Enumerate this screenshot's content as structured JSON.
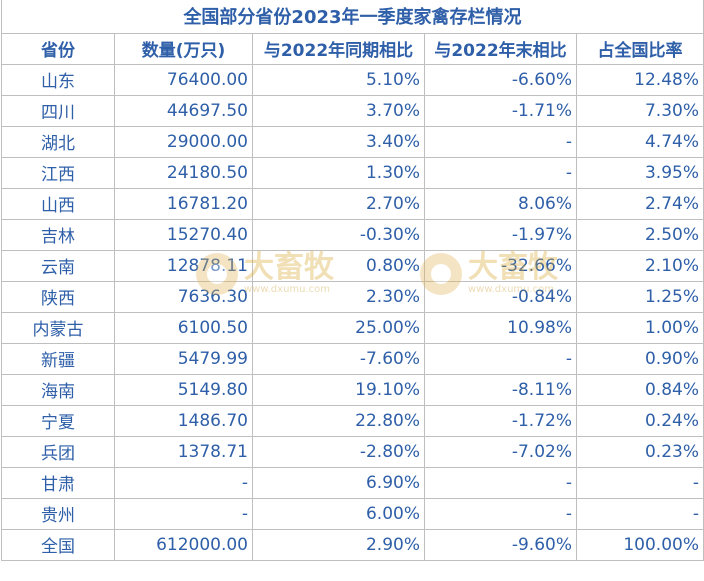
{
  "title": "全国部分省份2023年一季度家禽存栏情况",
  "headers": [
    "省份",
    "数量(万只)",
    "与2022年同期相比",
    "与2022年末相比",
    "占全国比率"
  ],
  "rows": [
    [
      "山东",
      "76400.00",
      "5.10%",
      "-6.60%",
      "12.48%"
    ],
    [
      "四川",
      "44697.50",
      "3.70%",
      "-1.71%",
      "7.30%"
    ],
    [
      "湖北",
      "29000.00",
      "3.40%",
      "-",
      "4.74%"
    ],
    [
      "江西",
      "24180.50",
      "1.30%",
      "-",
      "3.95%"
    ],
    [
      "山西",
      "16781.20",
      "2.70%",
      "8.06%",
      "2.74%"
    ],
    [
      "吉林",
      "15270.40",
      "-0.30%",
      "-1.97%",
      "2.50%"
    ],
    [
      "云南",
      "12878.11",
      "0.80%",
      "-32.66%",
      "2.10%"
    ],
    [
      "陕西",
      "7636.30",
      "2.30%",
      "-0.84%",
      "1.25%"
    ],
    [
      "内蒙古",
      "6100.50",
      "25.00%",
      "10.98%",
      "1.00%"
    ],
    [
      "新疆",
      "5479.99",
      "-7.60%",
      "-",
      "0.90%"
    ],
    [
      "海南",
      "5149.80",
      "19.10%",
      "-8.11%",
      "0.84%"
    ],
    [
      "宁夏",
      "1486.70",
      "22.80%",
      "-1.72%",
      "0.24%"
    ],
    [
      "兵团",
      "1378.71",
      "-2.80%",
      "-7.02%",
      "0.23%"
    ],
    [
      "甘肃",
      "-",
      "6.90%",
      "-",
      "-"
    ],
    [
      "贵州",
      "-",
      "6.00%",
      "-",
      "-"
    ],
    [
      "全国",
      "612000.00",
      "2.90%",
      "-9.60%",
      "100.00%"
    ]
  ],
  "watermark": {
    "brand": "大畜牧",
    "url": "www.dxumu.com",
    "color": "#d9a52e"
  },
  "colors": {
    "text": "#2e5fa8",
    "grid": "#bfbfbf"
  }
}
